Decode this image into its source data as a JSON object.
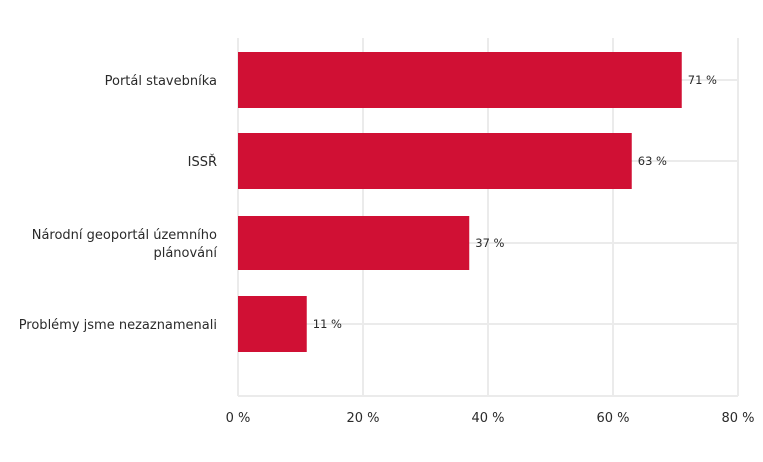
{
  "chart_data": {
    "type": "bar",
    "orientation": "horizontal",
    "title": "",
    "xlabel": "",
    "ylabel": "",
    "categories": [
      [
        "Portál stavebníka"
      ],
      [
        "ISSŘ"
      ],
      [
        "Národní geoportál územního",
        "plánování"
      ],
      [
        "Problémy jsme nezaznamenali"
      ]
    ],
    "values": [
      71,
      63,
      37,
      11
    ],
    "data_labels": [
      "71 %",
      "63 %",
      "37 %",
      "11 %"
    ],
    "xlim": [
      0,
      80
    ],
    "xticks": [
      0,
      20,
      40,
      60,
      80
    ],
    "xtick_labels": [
      "0 %",
      "20 %",
      "40 %",
      "60 %",
      "80 %"
    ],
    "grid": true,
    "bar_color": "#d01034",
    "grid_color": "#ebebeb"
  }
}
